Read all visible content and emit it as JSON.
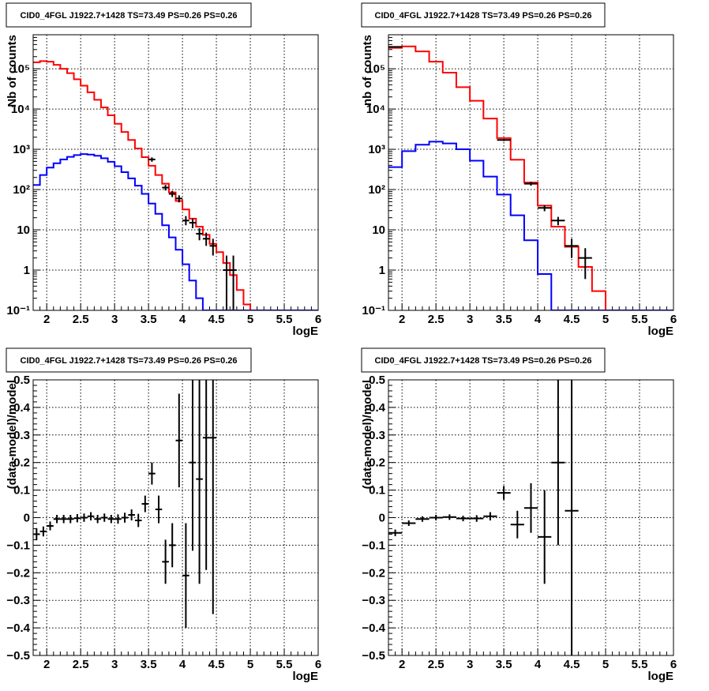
{
  "chart_data": [
    {
      "type": "histogram",
      "title": "CID0_4FGL J1922.7+1428 TS=73.49 PS=0.26 PS=0.26",
      "xlabel": "logE",
      "ylabel": "Nb of counts",
      "yscale": "log",
      "xlim": [
        1.8,
        6.0
      ],
      "ylim": [
        0.1,
        700000
      ],
      "grid": true,
      "xticks": [
        2,
        2.5,
        3,
        3.5,
        4,
        4.5,
        5,
        5.5,
        6
      ],
      "xtick_labels": [
        "2",
        "2.5",
        "3",
        "3.5",
        "4",
        "4.5",
        "5",
        "5.5",
        "6"
      ],
      "yticks": [
        0.1,
        1,
        10,
        100,
        1000,
        10000,
        100000
      ],
      "ytick_labels": [
        "10⁻¹",
        "1",
        "10",
        "10²",
        "10³",
        "10⁴",
        "10⁵"
      ],
      "bin_edges": [
        1.8,
        1.9,
        2.0,
        2.1,
        2.2,
        2.3,
        2.4,
        2.5,
        2.6,
        2.7,
        2.8,
        2.9,
        3.0,
        3.1,
        3.2,
        3.3,
        3.4,
        3.5,
        3.6,
        3.7,
        3.8,
        3.9,
        4.0,
        4.1,
        4.2,
        4.3,
        4.4,
        4.5,
        4.6,
        4.7,
        4.8,
        4.9,
        5.0,
        5.1,
        5.2,
        5.3,
        5.4,
        5.5,
        5.6,
        5.7,
        5.8,
        5.9,
        6.0
      ],
      "series": [
        {
          "color": "#ff0000",
          "style": "step",
          "values": [
            145000,
            155000,
            150000,
            125000,
            100000,
            78000,
            55000,
            38000,
            26000,
            17000,
            11000,
            7000,
            4300,
            2700,
            1700,
            1050,
            640,
            390,
            230,
            140,
            85,
            52,
            32,
            19,
            12,
            7.5,
            4.5,
            2.8,
            1.5,
            0.75,
            0.32,
            0.14,
            0.08,
            0.06,
            0.06,
            0.06,
            0.06,
            0.06,
            0.06,
            0.06,
            0.06,
            0.06
          ]
        },
        {
          "color": "#0000ff",
          "style": "step",
          "values": [
            130,
            230,
            350,
            450,
            560,
            650,
            720,
            760,
            740,
            690,
            600,
            490,
            380,
            270,
            190,
            125,
            78,
            45,
            25,
            13,
            6.5,
            3.2,
            1.4,
            0.55,
            0.2,
            0.07,
            0.05,
            0.05,
            0.05,
            0.05,
            0.05,
            0.05,
            0.05,
            0.05,
            0.05,
            0.05,
            0.05,
            0.05,
            0.05,
            0.05,
            0.05,
            0.05
          ]
        },
        {
          "color": "#000000",
          "style": "points",
          "points": [
            {
              "x": 3.55,
              "y": 560,
              "ylo": 490,
              "yhi": 630
            },
            {
              "x": 3.75,
              "y": 112,
              "ylo": 95,
              "yhi": 130
            },
            {
              "x": 3.85,
              "y": 78,
              "ylo": 65,
              "yhi": 93
            },
            {
              "x": 3.95,
              "y": 60,
              "ylo": 48,
              "yhi": 72
            },
            {
              "x": 4.05,
              "y": 17,
              "ylo": 13,
              "yhi": 22
            },
            {
              "x": 4.15,
              "y": 15,
              "ylo": 11,
              "yhi": 19
            },
            {
              "x": 4.25,
              "y": 8,
              "ylo": 5.5,
              "yhi": 11
            },
            {
              "x": 4.35,
              "y": 6,
              "ylo": 4,
              "yhi": 8.5
            },
            {
              "x": 4.45,
              "y": 4,
              "ylo": 2.3,
              "yhi": 6
            },
            {
              "x": 4.65,
              "y": 1,
              "ylo": 0.1,
              "yhi": 2.3
            },
            {
              "x": 4.75,
              "y": 1,
              "ylo": 0.1,
              "yhi": 2.3
            }
          ]
        }
      ]
    },
    {
      "type": "histogram",
      "title": "CID0_4FGL J1922.7+1428 TS=73.49 PS=0.26 PS=0.26",
      "xlabel": "logE",
      "ylabel": "nb of counts",
      "yscale": "log",
      "xlim": [
        1.8,
        6.0
      ],
      "ylim": [
        0.1,
        700000
      ],
      "grid": true,
      "xticks": [
        2,
        2.5,
        3,
        3.5,
        4,
        4.5,
        5,
        5.5,
        6
      ],
      "xtick_labels": [
        "2",
        "2.5",
        "3",
        "3.5",
        "4",
        "4.5",
        "5",
        "5.5",
        "6"
      ],
      "yticks": [
        0.1,
        1,
        10,
        100,
        1000,
        10000,
        100000
      ],
      "ytick_labels": [
        "10⁻¹",
        "1",
        "10",
        "10²",
        "10³",
        "10⁴",
        "10⁵"
      ],
      "bin_edges": [
        1.8,
        2.0,
        2.2,
        2.4,
        2.6,
        2.8,
        3.0,
        3.2,
        3.4,
        3.6,
        3.8,
        4.0,
        4.2,
        4.4,
        4.6,
        4.8,
        5.0,
        5.2,
        5.4,
        5.6,
        5.8,
        6.0
      ],
      "series": [
        {
          "color": "#ff0000",
          "style": "step",
          "values": [
            330000,
            360000,
            270000,
            150000,
            80000,
            35000,
            16000,
            5800,
            1900,
            550,
            150,
            40,
            12,
            3.8,
            1.2,
            0.3,
            0.1,
            0.05,
            0.05,
            0.05,
            0.05
          ]
        },
        {
          "color": "#0000ff",
          "style": "step",
          "values": [
            360,
            900,
            1300,
            1550,
            1400,
            1000,
            520,
            210,
            75,
            23,
            5.5,
            0.8,
            0.05,
            0.05,
            0.05,
            0.05,
            0.05,
            0.05,
            0.05,
            0.05,
            0.05
          ]
        },
        {
          "color": "#000000",
          "style": "points",
          "points": [
            {
              "x": 1.9,
              "y": 350000,
              "ylo": 340000,
              "yhi": 360000
            },
            {
              "x": 3.5,
              "y": 1700,
              "ylo": 1600,
              "yhi": 1800
            },
            {
              "x": 3.9,
              "y": 140,
              "ylo": 125,
              "yhi": 155
            },
            {
              "x": 4.1,
              "y": 35,
              "ylo": 29,
              "yhi": 41
            },
            {
              "x": 4.3,
              "y": 17,
              "ylo": 13,
              "yhi": 21
            },
            {
              "x": 4.5,
              "y": 4,
              "ylo": 2,
              "yhi": 6
            },
            {
              "x": 4.7,
              "y": 2,
              "ylo": 0.6,
              "yhi": 3.5
            }
          ]
        }
      ]
    },
    {
      "type": "scatter",
      "title": "CID0_4FGL J1922.7+1428 TS=73.49 PS=0.26 PS=0.26",
      "xlabel": "logE",
      "ylabel": "(data-model)/model",
      "xlim": [
        1.8,
        6.0
      ],
      "ylim": [
        -0.5,
        0.5
      ],
      "grid": true,
      "xticks": [
        2,
        2.5,
        3,
        3.5,
        4,
        4.5,
        5,
        5.5,
        6
      ],
      "xtick_labels": [
        "2",
        "2.5",
        "3",
        "3.5",
        "4",
        "4.5",
        "5",
        "5.5",
        "6"
      ],
      "yticks": [
        -0.5,
        -0.4,
        -0.3,
        -0.2,
        -0.1,
        0,
        0.1,
        0.2,
        0.3,
        0.4,
        0.5
      ],
      "ytick_labels": [
        "−0.5",
        "−0.4",
        "−0.3",
        "−0.2",
        "−0.1",
        "0",
        "0.1",
        "0.2",
        "0.3",
        "0.4",
        "0.5"
      ],
      "series": [
        {
          "color": "#000000",
          "style": "points",
          "xerr": 0.05,
          "points": [
            {
              "x": 1.85,
              "y": -0.06,
              "err": 0.022
            },
            {
              "x": 1.95,
              "y": -0.05,
              "err": 0.018
            },
            {
              "x": 2.05,
              "y": -0.03,
              "err": 0.016
            },
            {
              "x": 2.15,
              "y": -0.005,
              "err": 0.015
            },
            {
              "x": 2.25,
              "y": -0.005,
              "err": 0.015
            },
            {
              "x": 2.35,
              "y": -0.005,
              "err": 0.015
            },
            {
              "x": 2.45,
              "y": -0.002,
              "err": 0.015
            },
            {
              "x": 2.55,
              "y": 0.0,
              "err": 0.015
            },
            {
              "x": 2.65,
              "y": 0.005,
              "err": 0.015
            },
            {
              "x": 2.75,
              "y": -0.005,
              "err": 0.015
            },
            {
              "x": 2.85,
              "y": 0.0,
              "err": 0.015
            },
            {
              "x": 2.95,
              "y": -0.005,
              "err": 0.015
            },
            {
              "x": 3.05,
              "y": -0.005,
              "err": 0.017
            },
            {
              "x": 3.15,
              "y": 0.0,
              "err": 0.018
            },
            {
              "x": 3.25,
              "y": 0.01,
              "err": 0.02
            },
            {
              "x": 3.35,
              "y": -0.01,
              "err": 0.024
            },
            {
              "x": 3.45,
              "y": 0.05,
              "err": 0.03
            },
            {
              "x": 3.55,
              "y": 0.16,
              "err": 0.04
            },
            {
              "x": 3.65,
              "y": 0.03,
              "err": 0.05
            },
            {
              "x": 3.75,
              "y": -0.16,
              "err": 0.08
            },
            {
              "x": 3.85,
              "y": -0.1,
              "err": 0.08
            },
            {
              "x": 3.95,
              "y": 0.28,
              "err": 0.17
            },
            {
              "x": 4.05,
              "y": -0.21,
              "err": 0.19
            },
            {
              "x": 4.15,
              "y": 0.2,
              "err": 0.32
            },
            {
              "x": 4.25,
              "y": 0.14,
              "err": 0.38
            },
            {
              "x": 4.35,
              "y": 0.29,
              "err": 0.48
            },
            {
              "x": 4.45,
              "y": 0.29,
              "err": 0.64
            }
          ]
        }
      ]
    },
    {
      "type": "scatter",
      "title": "CID0_4FGL J1922.7+1428 TS=73.49 PS=0.26 PS=0.26",
      "xlabel": "logE",
      "ylabel": "(data-model)/model",
      "xlim": [
        1.8,
        6.0
      ],
      "ylim": [
        -0.5,
        0.5
      ],
      "grid": true,
      "xticks": [
        2,
        2.5,
        3,
        3.5,
        4,
        4.5,
        5,
        5.5,
        6
      ],
      "xtick_labels": [
        "2",
        "2.5",
        "3",
        "3.5",
        "4",
        "4.5",
        "5",
        "5.5",
        "6"
      ],
      "yticks": [
        -0.5,
        -0.4,
        -0.3,
        -0.2,
        -0.1,
        0,
        0.1,
        0.2,
        0.3,
        0.4,
        0.5
      ],
      "ytick_labels": [
        "−0.5",
        "−0.4",
        "−0.3",
        "−0.2",
        "−0.1",
        "0",
        "0.1",
        "0.2",
        "0.3",
        "0.4",
        "0.5"
      ],
      "series": [
        {
          "color": "#000000",
          "style": "points",
          "xerr": 0.1,
          "points": [
            {
              "x": 1.9,
              "y": -0.055,
              "err": 0.012
            },
            {
              "x": 2.1,
              "y": -0.02,
              "err": 0.01
            },
            {
              "x": 2.3,
              "y": -0.005,
              "err": 0.01
            },
            {
              "x": 2.5,
              "y": 0.0,
              "err": 0.01
            },
            {
              "x": 2.7,
              "y": 0.002,
              "err": 0.01
            },
            {
              "x": 2.9,
              "y": -0.003,
              "err": 0.01
            },
            {
              "x": 3.1,
              "y": -0.003,
              "err": 0.012
            },
            {
              "x": 3.3,
              "y": 0.005,
              "err": 0.015
            },
            {
              "x": 3.5,
              "y": 0.09,
              "err": 0.025
            },
            {
              "x": 3.7,
              "y": -0.025,
              "err": 0.05
            },
            {
              "x": 3.9,
              "y": 0.035,
              "err": 0.09
            },
            {
              "x": 4.1,
              "y": -0.07,
              "err": 0.17
            },
            {
              "x": 4.3,
              "y": 0.2,
              "err": 0.3
            },
            {
              "x": 4.5,
              "y": 0.025,
              "err": 0.56
            }
          ]
        }
      ]
    }
  ]
}
